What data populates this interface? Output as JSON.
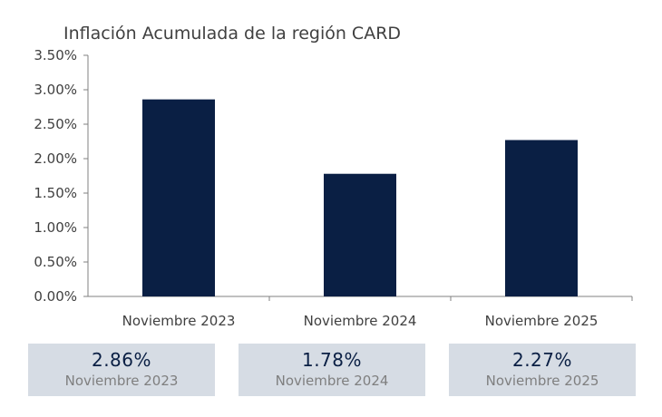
{
  "chart_data": {
    "type": "bar",
    "title": "Inflación Acumulada de la región CARD",
    "categories": [
      "Noviembre 2023",
      "Noviembre 2024",
      "Noviembre 2025"
    ],
    "values": [
      2.86,
      1.78,
      2.27
    ],
    "ylim": [
      0,
      3.5
    ],
    "yticks": [
      "0.00%",
      "0.50%",
      "1.00%",
      "1.50%",
      "2.00%",
      "2.50%",
      "3.00%",
      "3.50%"
    ],
    "grid": false,
    "bar_color": "#0a1f44"
  },
  "cards": [
    {
      "value": "2.86%",
      "label": "Noviembre 2023"
    },
    {
      "value": "1.78%",
      "label": "Noviembre 2024"
    },
    {
      "value": "2.27%",
      "label": "Noviembre 2025"
    }
  ],
  "colors": {
    "bar": "#0a1f44",
    "card_bg": "#d6dce4"
  }
}
